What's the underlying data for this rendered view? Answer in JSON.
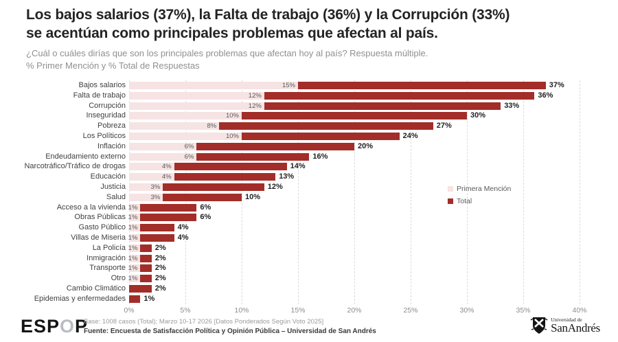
{
  "header": {
    "title_line1": "Los bajos salarios (37%), la Falta de trabajo (36%) y la Corrupción (33%)",
    "title_line2": "se acentúan como principales problemas que afectan al país.",
    "subtitle_line1": "¿Cuál o cuáles dirías que son los principales problemas que afectan hoy al país? Respuesta múltiple.",
    "subtitle_line2": "% Primer Mención y % Total de Respuestas"
  },
  "chart_data": {
    "type": "bar",
    "orientation": "horizontal",
    "title": "Los bajos salarios (37%), la Falta de trabajo (36%) y la Corrupción (33%) se acentúan como principales problemas que afectan al país.",
    "categories": [
      "Bajos salarios",
      "Falta de trabajo",
      "Corrupción",
      "Inseguridad",
      "Pobreza",
      "Los Políticos",
      "Inflación",
      "Endeudamiento externo",
      "Narcotráfico/Tráfico de drogas",
      "Educación",
      "Justicia",
      "Salud",
      "Acceso a la vivienda",
      "Obras Públicas",
      "Gasto Público",
      "Villas de Miseria",
      "La Policía",
      "Inmigración",
      "Transporte",
      "Otro",
      "Cambio Climático",
      "Epidemias y enfermedades"
    ],
    "series": [
      {
        "name": "Primera Mención",
        "color": "#f6e3e3",
        "values": [
          15,
          12,
          12,
          10,
          8,
          10,
          6,
          6,
          4,
          4,
          3,
          3,
          1,
          1,
          1,
          1,
          1,
          1,
          1,
          1,
          0,
          0
        ]
      },
      {
        "name": "Total",
        "color": "#a32d28",
        "values": [
          37,
          36,
          33,
          30,
          27,
          24,
          20,
          16,
          14,
          13,
          12,
          10,
          6,
          6,
          4,
          4,
          2,
          2,
          2,
          2,
          2,
          1
        ]
      }
    ],
    "bar_style": "overlay: pink segment 0→Primera Mención, dark red segment Primera Mención→Total; bar end = Total",
    "pm_labels": [
      "15%",
      "12%",
      "12%",
      "10%",
      "8%",
      "10%",
      "6%",
      "6%",
      "4%",
      "4%",
      "3%",
      "3%",
      "1%",
      "1%",
      "1%",
      "1%",
      "1%",
      "1%",
      "1%",
      "1%",
      "",
      ""
    ],
    "total_labels": [
      "37%",
      "36%",
      "33%",
      "30%",
      "27%",
      "24%",
      "20%",
      "16%",
      "14%",
      "13%",
      "12%",
      "10%",
      "6%",
      "6%",
      "4%",
      "4%",
      "2%",
      "2%",
      "2%",
      "2%",
      "2%",
      "1%"
    ],
    "x_ticks": [
      "0%",
      "5%",
      "10%",
      "15%",
      "20%",
      "25%",
      "30%",
      "35%",
      "40%"
    ],
    "xlim": [
      0,
      40
    ],
    "xlabel": "",
    "ylabel": "",
    "grid": "vertical dashed",
    "legend_position": "right-middle"
  },
  "legend": {
    "items": [
      {
        "label": "Primera Mención",
        "color": "#f6e3e3"
      },
      {
        "label": "Total",
        "color": "#a32d28"
      }
    ]
  },
  "footer": {
    "logo_espop_part1": "ESP",
    "logo_espop_part2": "O",
    "logo_espop_part3": "P",
    "base_line": "Base: 1008 casos (Total); Marzo 10-17 2026 [Datos Ponderados Según Voto 2025]",
    "fuente_line": "Fuente: Encuesta de Satisfacción Política y Opinión Pública – Universidad de San Andrés",
    "university_small": "Universidad de",
    "university_big": "SanAndrés"
  },
  "colors": {
    "total_bar": "#a32d28",
    "primera_mencion_bar": "#f6e3e3",
    "title_text": "#232323",
    "subtitle_text": "#8f8f8f",
    "gridline": "#dadada"
  }
}
